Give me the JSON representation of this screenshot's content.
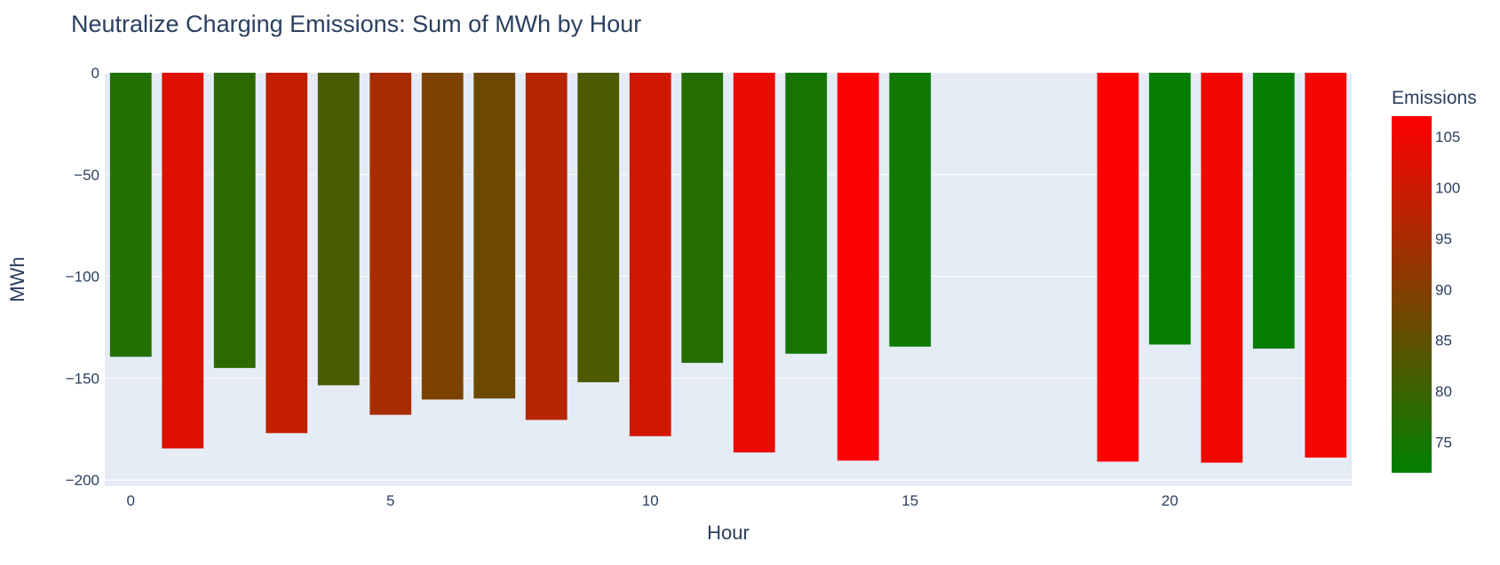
{
  "chart_data": {
    "type": "bar",
    "title": "Neutralize Charging Emissions: Sum of MWh by Hour",
    "xlabel": "Hour",
    "ylabel": "MWh",
    "xlim": [
      -0.5,
      23.5
    ],
    "ylim": [
      -203,
      0
    ],
    "x_ticks": [
      0,
      5,
      10,
      15,
      20
    ],
    "x_tick_labels": [
      "0",
      "5",
      "10",
      "15",
      "20"
    ],
    "y_ticks": [
      0,
      -50,
      -100,
      -150,
      -200
    ],
    "y_tick_labels": [
      "0",
      "−50",
      "−100",
      "−150",
      "−200"
    ],
    "grid": true,
    "x": [
      0,
      1,
      2,
      3,
      4,
      5,
      6,
      7,
      8,
      9,
      10,
      11,
      12,
      13,
      14,
      15,
      19,
      20,
      21,
      22,
      23
    ],
    "values": [
      -139.5,
      -184.5,
      -145,
      -177,
      -153.5,
      -168,
      -160.5,
      -160,
      -170.5,
      -152,
      -178.5,
      -142.5,
      -186.5,
      -138,
      -190.5,
      -134.5,
      -191,
      -133.5,
      -191.5,
      -135.5,
      -189
    ],
    "color_values": [
      76.5,
      102.5,
      78,
      98.5,
      82,
      95,
      89,
      87,
      97,
      82.5,
      100.5,
      77,
      104,
      75,
      106.5,
      74,
      106.5,
      72.5,
      105,
      72.5,
      105.5
    ],
    "colorbar": {
      "title": "Emissions",
      "min": 72,
      "max": 107,
      "ticks": [
        75,
        80,
        85,
        90,
        95,
        100,
        105
      ],
      "tick_labels": [
        "75",
        "80",
        "85",
        "90",
        "95",
        "100",
        "105"
      ],
      "color_low": "#008000",
      "color_high": "#ff0000"
    },
    "colors": {
      "plot_background": "#e5ecf6",
      "grid": "#ffffff",
      "text": "#2a3f5f"
    }
  }
}
